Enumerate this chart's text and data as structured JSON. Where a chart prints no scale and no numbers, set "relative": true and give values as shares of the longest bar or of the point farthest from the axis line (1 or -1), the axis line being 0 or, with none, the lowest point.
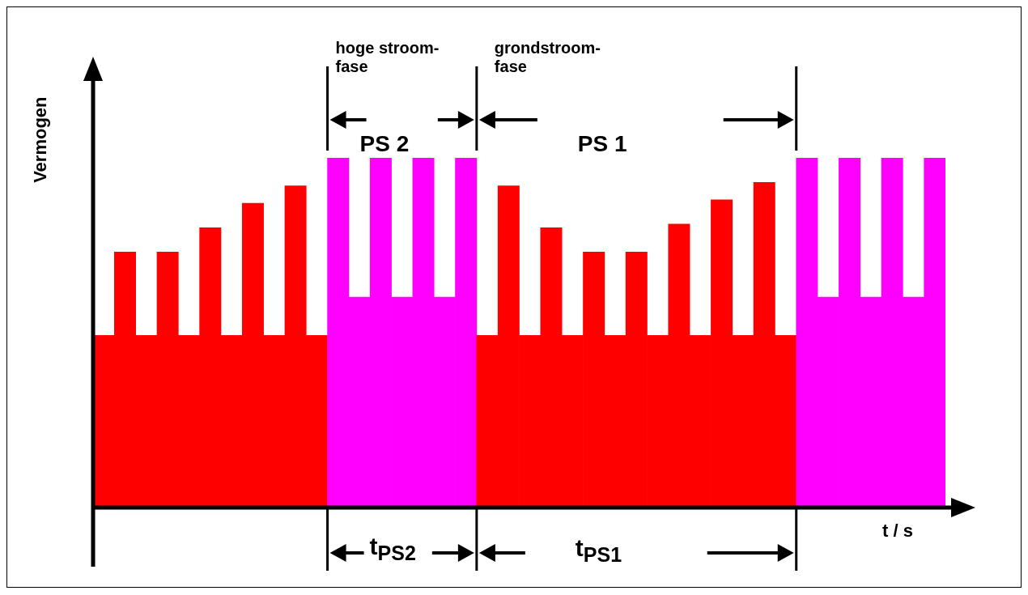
{
  "chart_data": {
    "type": "bar",
    "relative": true,
    "xlabel": "t / s",
    "ylabel": "Vermogen",
    "categories": [
      null,
      null,
      null,
      null,
      null,
      null,
      null,
      null,
      null,
      null,
      null,
      null,
      null,
      null,
      null,
      null,
      null,
      null,
      null,
      null,
      null,
      null,
      null,
      null,
      null,
      null,
      null,
      null,
      null,
      null,
      null,
      null,
      null,
      null,
      null,
      null,
      null,
      null,
      null,
      null
    ],
    "values": [
      0.49,
      0.73,
      0.49,
      0.73,
      0.49,
      0.8,
      0.49,
      0.87,
      0.49,
      0.92,
      0.49,
      1,
      0.6,
      1,
      0.6,
      1,
      0.6,
      1,
      0.49,
      0.92,
      0.49,
      0.8,
      0.49,
      0.73,
      0.49,
      0.73,
      0.49,
      0.81,
      0.49,
      0.88,
      0.49,
      0.93,
      0.49,
      1,
      0.6,
      1,
      0.6,
      1,
      0.6,
      1
    ],
    "colors": [
      "#ff0000",
      "#ff0000",
      "#ff0000",
      "#ff0000",
      "#ff0000",
      "#ff0000",
      "#ff0000",
      "#ff0000",
      "#ff0000",
      "#ff0000",
      "#ff0000",
      "#ff00ff",
      "#ff00ff",
      "#ff00ff",
      "#ff00ff",
      "#ff00ff",
      "#ff00ff",
      "#ff00ff",
      "#ff0000",
      "#ff0000",
      "#ff0000",
      "#ff0000",
      "#ff0000",
      "#ff0000",
      "#ff0000",
      "#ff0000",
      "#ff0000",
      "#ff0000",
      "#ff0000",
      "#ff0000",
      "#ff0000",
      "#ff0000",
      "#ff0000",
      "#ff00ff",
      "#ff00ff",
      "#ff00ff",
      "#ff00ff",
      "#ff00ff",
      "#ff00ff",
      "#ff00ff"
    ],
    "annotations": [
      "hoge stroom-fase",
      "grondstroom-fase",
      "PS 2",
      "PS 1",
      "t$_{PS2}$",
      "t$_{PS1}$"
    ]
  }
}
